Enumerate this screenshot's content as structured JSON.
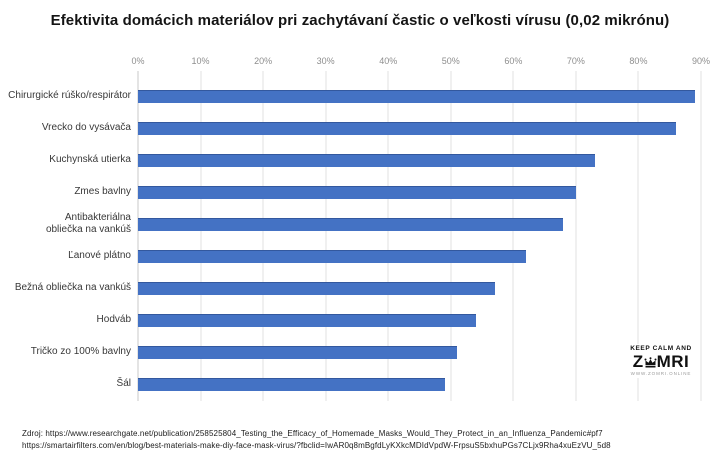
{
  "title": "Efektivita domácich materiálov pri zachytávaní častic o veľkosti vírusu (0,02 mikrónu)",
  "chart_data": {
    "type": "bar",
    "orientation": "horizontal",
    "title": "Efektivita domácich materiálov pri zachytávaní častic o veľkosti vírusu (0,02 mikrónu)",
    "categories": [
      "Chirurgické rúško/respirátor",
      "Vrecko do vysávača",
      "Kuchynská utierka",
      "Zmes bavlny",
      "Antibakteriálna\nobliečka na vankúš",
      "Ľanové plátno",
      "Bežná obliečka na vankúš",
      "Hodváb",
      "Tričko zo 100% bavlny",
      "Šál"
    ],
    "values": [
      89,
      86,
      73,
      70,
      68,
      62,
      57,
      54,
      51,
      49
    ],
    "unit": "%",
    "xticks": [
      "0%",
      "10%",
      "20%",
      "30%",
      "40%",
      "50%",
      "60%",
      "70%",
      "80%",
      "90%"
    ],
    "xlim": [
      0,
      90
    ],
    "xlabel": "",
    "ylabel": "",
    "grid": true,
    "legend": false,
    "bar_color": "#4472C4",
    "gridline_color": "#e0e0e0"
  },
  "watermark": {
    "line1": "KEEP CALM AND",
    "zomri_prefix": "Z",
    "zomri_suffix": "MRI",
    "line3": "WWW.ZOMRI.ONLINE"
  },
  "source": {
    "line1": "Zdroj: https://www.researchgate.net/publication/258525804_Testing_the_Efficacy_of_Homemade_Masks_Would_They_Protect_in_an_Influenza_Pandemic#pf7",
    "line2": "https://smartairfilters.com/en/blog/best-materials-make-diy-face-mask-virus/?fbclid=IwAR0q8mBgfdLyKXkcMDIdVpdW-FrpsuS5bxhuPGs7CLjx9Rha4xuEzVU_5d8"
  }
}
